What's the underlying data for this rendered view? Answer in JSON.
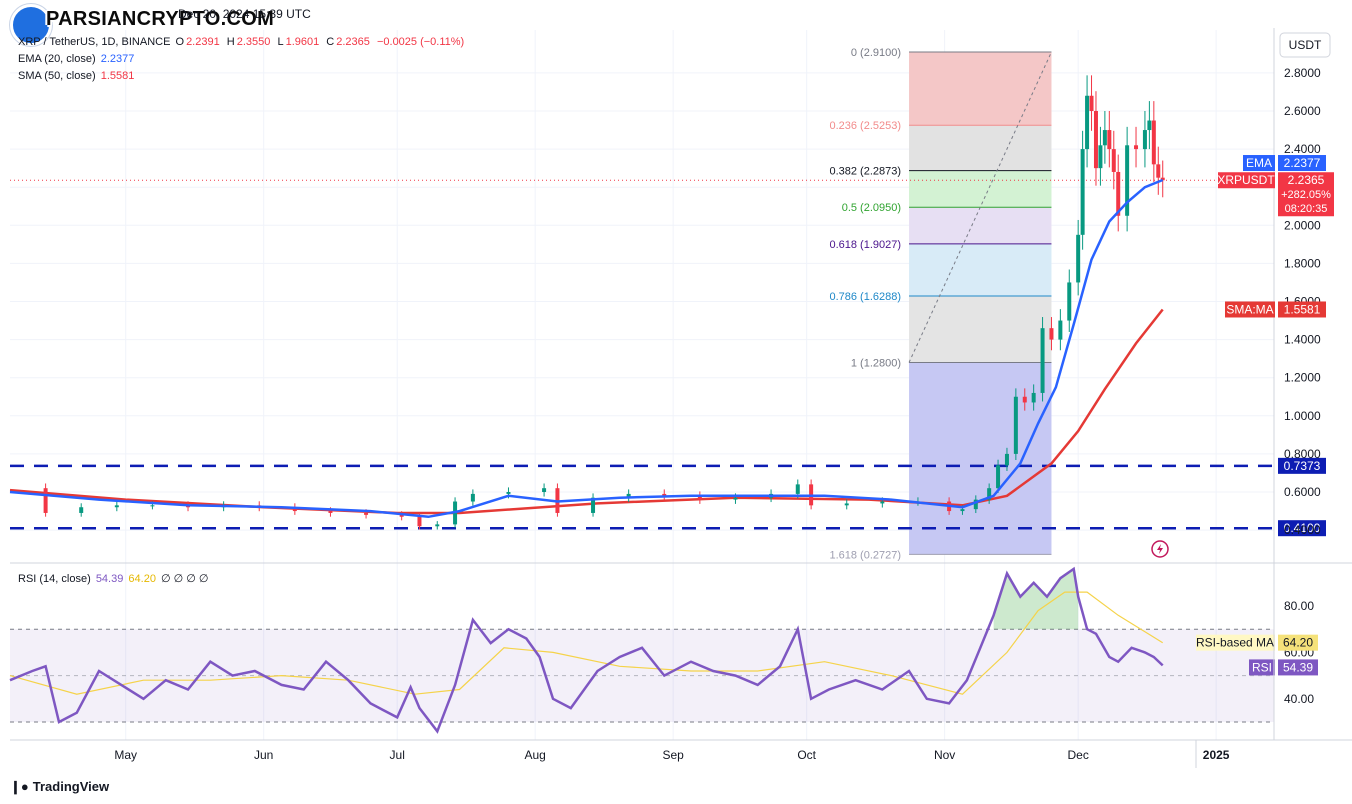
{
  "header": {
    "topline": "Dec 20, 2024 15:39 UTC",
    "watermark": "PARSIANCRYPTO.COM"
  },
  "legend": {
    "symbol": "XRP / TetherUS, 1D, BINANCE",
    "ohlc": [
      {
        "label": "O",
        "value": "2.2391"
      },
      {
        "label": "H",
        "value": "2.3550"
      },
      {
        "label": "L",
        "value": "1.9601"
      },
      {
        "label": "C",
        "value": "2.2365"
      }
    ],
    "change": "−0.0025 (−0.11%)",
    "ema_label": "EMA (20, close)",
    "ema_value": "2.2377",
    "sma_label": "SMA (50, close)",
    "sma_value": "1.5581",
    "rsi_label": "RSI (14, close)",
    "rsi_value": "54.39",
    "rsi_ma_value": "64.20",
    "rsi_extra": "∅ ∅ ∅ ∅"
  },
  "footer": {
    "brand": "TradingView"
  },
  "colors": {
    "up": "#089981",
    "down": "#f23645",
    "ema": "#2962ff",
    "sma": "#e53935",
    "rsi": "#7e57c2",
    "rsi_ma": "#f5d34a",
    "level": "#0d1db3"
  },
  "chart_data": [
    {
      "type": "line",
      "subtype": "candlestick",
      "currency": "USDT",
      "y_ticks": [
        "2.8000",
        "2.6000",
        "2.4000",
        "2.2000",
        "2.0000",
        "1.8000",
        "1.6000",
        "1.4000",
        "1.2000",
        "1.0000",
        "0.8000",
        "0.6000",
        "0.4000"
      ],
      "y_tick_values": [
        2.8,
        2.6,
        2.4,
        2.2,
        2.0,
        1.8,
        1.6,
        1.4,
        1.2,
        1.0,
        0.8,
        0.6,
        0.4
      ],
      "x_ticks": [
        "May",
        "Jun",
        "Jul",
        "Aug",
        "Sep",
        "Oct",
        "Nov",
        "Dec",
        "2025"
      ],
      "x_tick_dates": [
        "2024-05-01",
        "2024-06-01",
        "2024-07-01",
        "2024-08-01",
        "2024-09-01",
        "2024-10-01",
        "2024-11-01",
        "2024-12-01",
        "2025-01-01"
      ],
      "date_range": [
        "2024-04-05",
        "2025-01-14"
      ],
      "series": [
        {
          "name": "XRP / TetherUS",
          "kind": "close",
          "x": [
            "2024-04-05",
            "2024-04-13",
            "2024-04-21",
            "2024-04-29",
            "2024-05-07",
            "2024-05-15",
            "2024-05-23",
            "2024-05-31",
            "2024-06-08",
            "2024-06-16",
            "2024-06-24",
            "2024-07-02",
            "2024-07-06",
            "2024-07-10",
            "2024-07-14",
            "2024-07-18",
            "2024-07-26",
            "2024-08-03",
            "2024-08-06",
            "2024-08-14",
            "2024-08-22",
            "2024-08-30",
            "2024-09-07",
            "2024-09-15",
            "2024-09-23",
            "2024-09-29",
            "2024-10-02",
            "2024-10-10",
            "2024-10-18",
            "2024-10-26",
            "2024-11-02",
            "2024-11-05",
            "2024-11-08",
            "2024-11-11",
            "2024-11-13",
            "2024-11-15",
            "2024-11-17",
            "2024-11-19",
            "2024-11-21",
            "2024-11-23",
            "2024-11-25",
            "2024-11-27",
            "2024-11-29",
            "2024-12-01",
            "2024-12-02",
            "2024-12-03",
            "2024-12-04",
            "2024-12-05",
            "2024-12-06",
            "2024-12-07",
            "2024-12-08",
            "2024-12-09",
            "2024-12-10",
            "2024-12-12",
            "2024-12-14",
            "2024-12-16",
            "2024-12-17",
            "2024-12-18",
            "2024-12-19",
            "2024-12-20"
          ],
          "values": [
            0.62,
            0.49,
            0.52,
            0.53,
            0.53,
            0.52,
            0.53,
            0.52,
            0.5,
            0.49,
            0.48,
            0.47,
            0.42,
            0.43,
            0.55,
            0.59,
            0.6,
            0.62,
            0.49,
            0.57,
            0.59,
            0.58,
            0.56,
            0.57,
            0.59,
            0.64,
            0.53,
            0.54,
            0.55,
            0.55,
            0.5,
            0.51,
            0.56,
            0.62,
            0.74,
            0.8,
            1.1,
            1.07,
            1.12,
            1.46,
            1.4,
            1.5,
            1.7,
            1.95,
            2.4,
            2.68,
            2.6,
            2.3,
            2.42,
            2.5,
            2.4,
            2.28,
            2.05,
            2.42,
            2.4,
            2.5,
            2.55,
            2.32,
            2.25,
            2.2365
          ]
        },
        {
          "name": "EMA (20, close)",
          "x": [
            "2024-04-05",
            "2024-04-25",
            "2024-05-15",
            "2024-06-05",
            "2024-06-25",
            "2024-07-08",
            "2024-07-15",
            "2024-07-26",
            "2024-08-06",
            "2024-08-20",
            "2024-09-05",
            "2024-09-20",
            "2024-10-05",
            "2024-10-20",
            "2024-11-05",
            "2024-11-12",
            "2024-11-18",
            "2024-11-22",
            "2024-11-26",
            "2024-11-30",
            "2024-12-04",
            "2024-12-08",
            "2024-12-12",
            "2024-12-16",
            "2024-12-20"
          ],
          "values": [
            0.6,
            0.56,
            0.53,
            0.52,
            0.5,
            0.47,
            0.5,
            0.58,
            0.55,
            0.57,
            0.58,
            0.58,
            0.58,
            0.56,
            0.52,
            0.58,
            0.75,
            0.96,
            1.15,
            1.48,
            1.82,
            2.02,
            2.12,
            2.2,
            2.2377
          ]
        },
        {
          "name": "SMA (50, close)",
          "x": [
            "2024-04-05",
            "2024-05-01",
            "2024-06-01",
            "2024-07-01",
            "2024-07-15",
            "2024-08-15",
            "2024-09-15",
            "2024-10-15",
            "2024-11-05",
            "2024-11-15",
            "2024-11-25",
            "2024-12-01",
            "2024-12-07",
            "2024-12-14",
            "2024-12-20"
          ],
          "values": [
            0.61,
            0.56,
            0.52,
            0.49,
            0.49,
            0.54,
            0.57,
            0.56,
            0.53,
            0.58,
            0.75,
            0.92,
            1.14,
            1.38,
            1.5581
          ]
        }
      ],
      "fibonacci": [
        {
          "ratio": "0",
          "price": "2.9100",
          "value": 2.91
        },
        {
          "ratio": "0.236",
          "price": "2.5253",
          "value": 2.5253
        },
        {
          "ratio": "0.382",
          "price": "2.2873",
          "value": 2.2873
        },
        {
          "ratio": "0.5",
          "price": "2.0950",
          "value": 2.095
        },
        {
          "ratio": "0.618",
          "price": "1.9027",
          "value": 1.9027
        },
        {
          "ratio": "0.786",
          "price": "1.6288",
          "value": 1.6288
        },
        {
          "ratio": "1",
          "price": "1.2800",
          "value": 1.28
        },
        {
          "ratio": "1.618",
          "price": "0.2727",
          "value": 0.2727
        }
      ],
      "fib_dates": [
        "2024-10-24",
        "2024-11-25"
      ],
      "horizontal_levels": [
        {
          "label": "0.7373",
          "value": 0.7373
        },
        {
          "label": "0.4100",
          "value": 0.41
        }
      ],
      "price_tags": [
        {
          "label": "EMA",
          "value": "2.2377",
          "at": 2.2377
        },
        {
          "label": "XRPUSDT",
          "value": "2.2365",
          "change": "+282.05%",
          "countdown": "08:20:35",
          "at": 2.2365
        },
        {
          "label": "SMA:MA",
          "value": "1.5581",
          "at": 1.5581
        }
      ]
    },
    {
      "type": "line",
      "name": "RSI (14, close)",
      "y_ticks": [
        "80.00",
        "60.00",
        "40.00"
      ],
      "y_tick_values": [
        80,
        60,
        40
      ],
      "band": [
        30,
        70
      ],
      "series": [
        {
          "name": "RSI",
          "x": [
            "2024-04-05",
            "2024-04-10",
            "2024-04-13",
            "2024-04-16",
            "2024-04-20",
            "2024-04-25",
            "2024-04-30",
            "2024-05-05",
            "2024-05-10",
            "2024-05-15",
            "2024-05-20",
            "2024-05-25",
            "2024-05-30",
            "2024-06-05",
            "2024-06-10",
            "2024-06-15",
            "2024-06-20",
            "2024-06-25",
            "2024-07-01",
            "2024-07-04",
            "2024-07-06",
            "2024-07-10",
            "2024-07-14",
            "2024-07-18",
            "2024-07-22",
            "2024-07-26",
            "2024-07-30",
            "2024-08-02",
            "2024-08-05",
            "2024-08-09",
            "2024-08-15",
            "2024-08-20",
            "2024-08-25",
            "2024-08-30",
            "2024-09-05",
            "2024-09-10",
            "2024-09-15",
            "2024-09-20",
            "2024-09-25",
            "2024-09-29",
            "2024-10-02",
            "2024-10-06",
            "2024-10-12",
            "2024-10-18",
            "2024-10-24",
            "2024-10-28",
            "2024-11-02",
            "2024-11-06",
            "2024-11-09",
            "2024-11-12",
            "2024-11-15",
            "2024-11-18",
            "2024-11-21",
            "2024-11-24",
            "2024-11-27",
            "2024-11-30",
            "2024-12-01",
            "2024-12-03",
            "2024-12-05",
            "2024-12-08",
            "2024-12-10",
            "2024-12-13",
            "2024-12-16",
            "2024-12-18",
            "2024-12-20"
          ],
          "values": [
            48,
            52,
            54,
            30,
            34,
            52,
            46,
            40,
            48,
            44,
            56,
            50,
            52,
            46,
            44,
            56,
            48,
            38,
            32,
            45,
            36,
            26,
            46,
            74,
            64,
            70,
            66,
            58,
            40,
            36,
            52,
            58,
            62,
            50,
            56,
            52,
            50,
            46,
            54,
            70,
            40,
            44,
            48,
            44,
            52,
            40,
            38,
            48,
            62,
            76,
            94,
            84,
            90,
            84,
            92,
            96,
            84,
            70,
            68,
            58,
            56,
            62,
            60,
            58,
            54.39
          ]
        },
        {
          "name": "RSI-based MA",
          "x": [
            "2024-04-05",
            "2024-04-20",
            "2024-05-05",
            "2024-05-20",
            "2024-06-05",
            "2024-06-20",
            "2024-07-05",
            "2024-07-15",
            "2024-07-25",
            "2024-08-05",
            "2024-08-20",
            "2024-09-05",
            "2024-09-20",
            "2024-10-05",
            "2024-10-20",
            "2024-11-05",
            "2024-11-15",
            "2024-11-22",
            "2024-11-28",
            "2024-12-03",
            "2024-12-10",
            "2024-12-20"
          ],
          "values": [
            50,
            42,
            48,
            48,
            50,
            48,
            42,
            44,
            62,
            60,
            54,
            52,
            52,
            56,
            50,
            42,
            60,
            78,
            86,
            86,
            76,
            64.2
          ]
        }
      ]
    }
  ]
}
